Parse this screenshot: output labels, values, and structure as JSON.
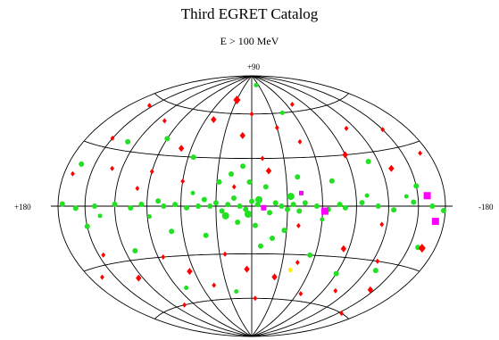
{
  "title": "Third EGRET Catalog",
  "subtitle": "E > 100 MeV",
  "labels": {
    "top": "+90",
    "left": "+180",
    "right": "-180"
  },
  "colors": {
    "grid": "#000000",
    "red": "#ff0000",
    "green": "#22e022",
    "magenta": "#ff00ff",
    "yellow": "#ffee00"
  },
  "sources": [
    {
      "l": 0,
      "b": 3,
      "color": "green",
      "shape": "circle",
      "size": 3
    },
    {
      "l": 5,
      "b": -2,
      "color": "green",
      "shape": "circle",
      "size": 3
    },
    {
      "l": -5,
      "b": 1,
      "color": "green",
      "shape": "circle",
      "size": 3
    },
    {
      "l": 10,
      "b": 0,
      "color": "green",
      "shape": "circle",
      "size": 3
    },
    {
      "l": -10,
      "b": -1,
      "color": "green",
      "shape": "circle",
      "size": 3
    },
    {
      "l": 15,
      "b": 5,
      "color": "green",
      "shape": "circle",
      "size": 3
    },
    {
      "l": -15,
      "b": -4,
      "color": "green",
      "shape": "circle",
      "size": 3
    },
    {
      "l": 20,
      "b": 1,
      "color": "green",
      "shape": "circle",
      "size": 3
    },
    {
      "l": -20,
      "b": 2,
      "color": "green",
      "shape": "circle",
      "size": 3
    },
    {
      "l": 25,
      "b": -3,
      "color": "green",
      "shape": "circle",
      "size": 3
    },
    {
      "l": -25,
      "b": 0,
      "color": "green",
      "shape": "circle",
      "size": 3
    },
    {
      "l": 30,
      "b": 2,
      "color": "green",
      "shape": "circle",
      "size": 3
    },
    {
      "l": -30,
      "b": -2,
      "color": "green",
      "shape": "circle",
      "size": 3
    },
    {
      "l": 35,
      "b": 0,
      "color": "green",
      "shape": "circle",
      "size": 3
    },
    {
      "l": -35,
      "b": 1,
      "color": "green",
      "shape": "circle",
      "size": 3
    },
    {
      "l": 40,
      "b": 4,
      "color": "green",
      "shape": "circle",
      "size": 3
    },
    {
      "l": -40,
      "b": -3,
      "color": "green",
      "shape": "circle",
      "size": 3
    },
    {
      "l": 45,
      "b": 0,
      "color": "green",
      "shape": "circle",
      "size": 3
    },
    {
      "l": -45,
      "b": 2,
      "color": "green",
      "shape": "circle",
      "size": 3
    },
    {
      "l": 55,
      "b": -1,
      "color": "green",
      "shape": "circle",
      "size": 3
    },
    {
      "l": -55,
      "b": 0,
      "color": "green",
      "shape": "circle",
      "size": 3
    },
    {
      "l": 65,
      "b": 1,
      "color": "green",
      "shape": "circle",
      "size": 3
    },
    {
      "l": -65,
      "b": -2,
      "color": "green",
      "shape": "circle",
      "size": 3
    },
    {
      "l": 75,
      "b": 0,
      "color": "green",
      "shape": "circle",
      "size": 3
    },
    {
      "l": -75,
      "b": 1,
      "color": "green",
      "shape": "circle",
      "size": 3
    },
    {
      "l": 80,
      "b": 3,
      "color": "green",
      "shape": "circle",
      "size": 3
    },
    {
      "l": -80,
      "b": -1,
      "color": "green",
      "shape": "circle",
      "size": 3
    },
    {
      "l": 95,
      "b": 1,
      "color": "green",
      "shape": "circle",
      "size": 3
    },
    {
      "l": -95,
      "b": 2,
      "color": "green",
      "shape": "circle",
      "size": 3
    },
    {
      "l": 105,
      "b": -1,
      "color": "green",
      "shape": "circle",
      "size": 3
    },
    {
      "l": -110,
      "b": 0,
      "color": "green",
      "shape": "circle",
      "size": 3
    },
    {
      "l": 120,
      "b": 1,
      "color": "green",
      "shape": "circle",
      "size": 3
    },
    {
      "l": -125,
      "b": -2,
      "color": "green",
      "shape": "circle",
      "size": 3
    },
    {
      "l": 140,
      "b": 0,
      "color": "green",
      "shape": "circle",
      "size": 3
    },
    {
      "l": -145,
      "b": 2,
      "color": "green",
      "shape": "circle",
      "size": 3
    },
    {
      "l": 160,
      "b": -1,
      "color": "green",
      "shape": "circle",
      "size": 3
    },
    {
      "l": -165,
      "b": 0,
      "color": "green",
      "shape": "circle",
      "size": 3
    },
    {
      "l": 175,
      "b": 1,
      "color": "green",
      "shape": "circle",
      "size": 3
    },
    {
      "l": -178,
      "b": -2,
      "color": "green",
      "shape": "circle",
      "size": 3
    },
    {
      "l": 2,
      "b": 15,
      "color": "green",
      "shape": "circle",
      "size": 3
    },
    {
      "l": -3,
      "b": -12,
      "color": "green",
      "shape": "circle",
      "size": 3
    },
    {
      "l": 8,
      "b": 25,
      "color": "green",
      "shape": "circle",
      "size": 3
    },
    {
      "l": -8,
      "b": -25,
      "color": "green",
      "shape": "circle",
      "size": 3
    },
    {
      "l": 12,
      "b": -10,
      "color": "green",
      "shape": "circle",
      "size": 3
    },
    {
      "l": -12,
      "b": 12,
      "color": "green",
      "shape": "circle",
      "size": 3
    },
    {
      "l": 18,
      "b": 20,
      "color": "green",
      "shape": "circle",
      "size": 3
    },
    {
      "l": -18,
      "b": -20,
      "color": "green",
      "shape": "circle",
      "size": 3
    },
    {
      "l": 28,
      "b": 15,
      "color": "green",
      "shape": "circle",
      "size": 3
    },
    {
      "l": -28,
      "b": -15,
      "color": "green",
      "shape": "circle",
      "size": 3
    },
    {
      "l": 40,
      "b": -18,
      "color": "green",
      "shape": "circle",
      "size": 3
    },
    {
      "l": -40,
      "b": 18,
      "color": "green",
      "shape": "circle",
      "size": 3
    },
    {
      "l": 55,
      "b": 30,
      "color": "green",
      "shape": "circle",
      "size": 3
    },
    {
      "l": -55,
      "b": -30,
      "color": "green",
      "shape": "circle",
      "size": 3
    },
    {
      "l": 70,
      "b": -15,
      "color": "green",
      "shape": "circle",
      "size": 3
    },
    {
      "l": -70,
      "b": 15,
      "color": "green",
      "shape": "circle",
      "size": 3
    },
    {
      "l": 90,
      "b": 40,
      "color": "green",
      "shape": "circle",
      "size": 3
    },
    {
      "l": -90,
      "b": -40,
      "color": "green",
      "shape": "circle",
      "size": 3
    },
    {
      "l": 110,
      "b": -25,
      "color": "green",
      "shape": "circle",
      "size": 3
    },
    {
      "l": -110,
      "b": 25,
      "color": "green",
      "shape": "circle",
      "size": 3
    },
    {
      "l": 130,
      "b": 35,
      "color": "green",
      "shape": "circle",
      "size": 3
    },
    {
      "l": -130,
      "b": -35,
      "color": "green",
      "shape": "circle",
      "size": 3
    },
    {
      "l": 150,
      "b": -10,
      "color": "green",
      "shape": "circle",
      "size": 3
    },
    {
      "l": -150,
      "b": 10,
      "color": "green",
      "shape": "circle",
      "size": 3
    },
    {
      "l": 165,
      "b": 20,
      "color": "green",
      "shape": "circle",
      "size": 3
    },
    {
      "l": -160,
      "b": -20,
      "color": "green",
      "shape": "circle",
      "size": 3
    },
    {
      "l": -20,
      "b": 82,
      "color": "green",
      "shape": "circle",
      "size": 2.5
    },
    {
      "l": 20,
      "b": -55,
      "color": "green",
      "shape": "circle",
      "size": 2.5
    },
    {
      "l": -45,
      "b": 60,
      "color": "green",
      "shape": "circle",
      "size": 2.5
    },
    {
      "l": 80,
      "b": -50,
      "color": "green",
      "shape": "circle",
      "size": 2.5
    },
    {
      "l": 3,
      "b": -5,
      "color": "green",
      "shape": "circle",
      "size": 4
    },
    {
      "l": -6,
      "b": 4,
      "color": "green",
      "shape": "circle",
      "size": 4
    },
    {
      "l": 22,
      "b": -6,
      "color": "green",
      "shape": "circle",
      "size": 4
    },
    {
      "l": -33,
      "b": 6,
      "color": "green",
      "shape": "circle",
      "size": 4
    },
    {
      "l": 50,
      "b": 8,
      "color": "green",
      "shape": "circle",
      "size": 2.5
    },
    {
      "l": -60,
      "b": -8,
      "color": "green",
      "shape": "circle",
      "size": 2.5
    },
    {
      "l": 88,
      "b": -6,
      "color": "green",
      "shape": "circle",
      "size": 2.5
    },
    {
      "l": -100,
      "b": 6,
      "color": "green",
      "shape": "circle",
      "size": 2.5
    },
    {
      "l": 135,
      "b": -5,
      "color": "green",
      "shape": "circle",
      "size": 2.5
    },
    {
      "l": -138,
      "b": 5,
      "color": "green",
      "shape": "circle",
      "size": 2.5
    },
    {
      "l": 0,
      "b": 60,
      "color": "red",
      "shape": "diamond",
      "size": 3
    },
    {
      "l": 10,
      "b": 45,
      "color": "red",
      "shape": "diamond",
      "size": 4
    },
    {
      "l": -10,
      "b": 30,
      "color": "red",
      "shape": "diamond",
      "size": 3
    },
    {
      "l": 30,
      "b": 70,
      "color": "red",
      "shape": "diamond",
      "size": 5
    },
    {
      "l": -30,
      "b": 50,
      "color": "red",
      "shape": "diamond",
      "size": 3
    },
    {
      "l": 50,
      "b": 55,
      "color": "red",
      "shape": "diamond",
      "size": 4
    },
    {
      "l": -50,
      "b": 40,
      "color": "red",
      "shape": "diamond",
      "size": 3
    },
    {
      "l": 70,
      "b": 35,
      "color": "red",
      "shape": "diamond",
      "size": 4
    },
    {
      "l": -70,
      "b": 65,
      "color": "red",
      "shape": "diamond",
      "size": 3
    },
    {
      "l": 90,
      "b": 20,
      "color": "red",
      "shape": "diamond",
      "size": 3
    },
    {
      "l": -90,
      "b": 30,
      "color": "red",
      "shape": "diamond",
      "size": 4
    },
    {
      "l": 110,
      "b": 50,
      "color": "red",
      "shape": "diamond",
      "size": 3
    },
    {
      "l": -110,
      "b": 45,
      "color": "red",
      "shape": "diamond",
      "size": 3
    },
    {
      "l": 130,
      "b": 20,
      "color": "red",
      "shape": "diamond",
      "size": 3
    },
    {
      "l": -130,
      "b": 20,
      "color": "red",
      "shape": "diamond",
      "size": 4
    },
    {
      "l": 150,
      "b": 35,
      "color": "red",
      "shape": "diamond",
      "size": 3
    },
    {
      "l": -150,
      "b": 40,
      "color": "red",
      "shape": "diamond",
      "size": 3
    },
    {
      "l": 170,
      "b": 15,
      "color": "red",
      "shape": "diamond",
      "size": 3
    },
    {
      "l": -170,
      "b": 25,
      "color": "red",
      "shape": "diamond",
      "size": 3
    },
    {
      "l": 5,
      "b": -40,
      "color": "red",
      "shape": "diamond",
      "size": 4
    },
    {
      "l": -5,
      "b": -60,
      "color": "red",
      "shape": "diamond",
      "size": 3
    },
    {
      "l": 25,
      "b": -30,
      "color": "red",
      "shape": "diamond",
      "size": 3
    },
    {
      "l": -25,
      "b": -45,
      "color": "red",
      "shape": "diamond",
      "size": 4
    },
    {
      "l": 45,
      "b": -50,
      "color": "red",
      "shape": "diamond",
      "size": 3
    },
    {
      "l": -45,
      "b": -35,
      "color": "red",
      "shape": "diamond",
      "size": 3
    },
    {
      "l": 65,
      "b": -40,
      "color": "red",
      "shape": "diamond",
      "size": 4
    },
    {
      "l": -65,
      "b": -55,
      "color": "red",
      "shape": "diamond",
      "size": 3
    },
    {
      "l": 85,
      "b": -30,
      "color": "red",
      "shape": "diamond",
      "size": 3
    },
    {
      "l": -85,
      "b": -25,
      "color": "red",
      "shape": "diamond",
      "size": 4
    },
    {
      "l": 105,
      "b": -60,
      "color": "red",
      "shape": "diamond",
      "size": 3
    },
    {
      "l": -105,
      "b": -50,
      "color": "red",
      "shape": "diamond",
      "size": 3
    },
    {
      "l": 125,
      "b": -40,
      "color": "red",
      "shape": "diamond",
      "size": 4
    },
    {
      "l": -125,
      "b": -30,
      "color": "red",
      "shape": "diamond",
      "size": 3
    },
    {
      "l": 145,
      "b": -25,
      "color": "red",
      "shape": "diamond",
      "size": 3
    },
    {
      "l": -145,
      "b": -45,
      "color": "red",
      "shape": "diamond",
      "size": 4
    },
    {
      "l": 165,
      "b": -35,
      "color": "red",
      "shape": "diamond",
      "size": 3
    },
    {
      "l": -165,
      "b": -20,
      "color": "red",
      "shape": "diamond",
      "size": 5
    },
    {
      "l": 60,
      "b": 15,
      "color": "red",
      "shape": "diamond",
      "size": 3
    },
    {
      "l": -40,
      "b": -12,
      "color": "red",
      "shape": "diamond",
      "size": 3
    },
    {
      "l": 15,
      "b": 12,
      "color": "red",
      "shape": "diamond",
      "size": 3
    },
    {
      "l": -15,
      "b": 22,
      "color": "red",
      "shape": "diamond",
      "size": 4
    },
    {
      "l": 100,
      "b": 10,
      "color": "red",
      "shape": "diamond",
      "size": 3
    },
    {
      "l": -115,
      "b": -10,
      "color": "red",
      "shape": "diamond",
      "size": 3
    },
    {
      "l": 155,
      "b": 55,
      "color": "red",
      "shape": "diamond",
      "size": 3
    },
    {
      "l": -155,
      "b": -60,
      "color": "red",
      "shape": "diamond",
      "size": 3
    },
    {
      "l": -42,
      "b": 8,
      "color": "magenta",
      "shape": "square",
      "size": 2.5
    },
    {
      "l": -62,
      "b": -3,
      "color": "magenta",
      "shape": "square",
      "size": 4
    },
    {
      "l": -10,
      "b": -1,
      "color": "magenta",
      "shape": "square",
      "size": 3
    },
    {
      "l": -160,
      "b": 5,
      "color": "magenta",
      "shape": "square",
      "size": 4
    },
    {
      "l": -170,
      "b": -7,
      "color": "magenta",
      "shape": "square",
      "size": 4
    },
    {
      "l": -40,
      "b": -40,
      "color": "yellow",
      "shape": "circle",
      "size": 2.5
    }
  ]
}
